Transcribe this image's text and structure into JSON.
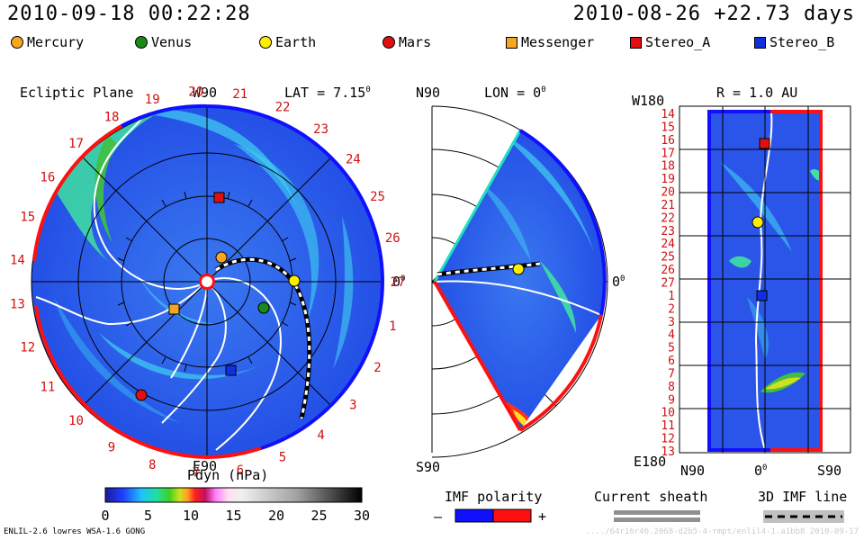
{
  "header": {
    "timestamp": "2010-09-18 00:22:28",
    "reference": "2010-08-26 +22.73 days"
  },
  "legend_bodies": [
    {
      "name": "Mercury",
      "shape": "circle",
      "color": "#f5a623"
    },
    {
      "name": "Venus",
      "shape": "circle",
      "color": "#1a8a1a"
    },
    {
      "name": "Earth",
      "shape": "circle",
      "color": "#ffee00"
    },
    {
      "name": "Mars",
      "shape": "circle",
      "color": "#e01010"
    },
    {
      "name": "Messenger",
      "shape": "square",
      "color": "#f5a623"
    },
    {
      "name": "Stereo_A",
      "shape": "square",
      "color": "#e01010"
    },
    {
      "name": "Stereo_B",
      "shape": "square",
      "color": "#1030e0"
    }
  ],
  "panels": {
    "ecliptic": {
      "title": "Ecliptic Plane",
      "top_label": "W90",
      "bottom_label": "E90",
      "lat_label": "LAT = 7.15",
      "right_label": "0"
    },
    "meridional": {
      "top_label": "N90",
      "bottom_label": "S90",
      "lon_label": "LON = 0",
      "right_label": "0"
    },
    "radial": {
      "title": "R = 1.0 AU",
      "top_left": "W180",
      "bottom_left": "E180",
      "x_left": "N90",
      "x_mid": "0",
      "x_right": "S90"
    }
  },
  "chart_data": {
    "type": "heatmap",
    "quantity": "Pdyn (nPa)",
    "colorbar_ticks": [
      0,
      5,
      10,
      15,
      20,
      25,
      30
    ],
    "colorbar_range": [
      0,
      30
    ],
    "carrington_days_ecliptic": [
      "1",
      "2",
      "3",
      "4",
      "5",
      "6",
      "7",
      "8",
      "9",
      "10",
      "11",
      "12",
      "13",
      "14",
      "15",
      "16",
      "17",
      "18",
      "19",
      "20",
      "21",
      "22",
      "23",
      "24",
      "25",
      "26",
      "27"
    ],
    "day_axis_radial": [
      "14",
      "15",
      "16",
      "17",
      "18",
      "19",
      "20",
      "21",
      "22",
      "23",
      "24",
      "25",
      "26",
      "27",
      "1",
      "2",
      "3",
      "4",
      "5",
      "6",
      "7",
      "8",
      "9",
      "10",
      "11",
      "12",
      "13"
    ]
  },
  "footer": {
    "imf_polarity_label": "IMF polarity",
    "imf_minus": "–",
    "imf_plus": "+",
    "current_sheath_label": "Current sheath",
    "imf_line_label": "3D IMF line",
    "model_info": "ENLIL-2.6 lowres WSA-1.6 GONG",
    "run_id": "..../64r16r46.2068-d2b5-4-rmpt/enlil4-1.a1bb8   2010-09-17"
  },
  "colors": {
    "background_field": "#2b55e8",
    "positive_polarity": "#ff1010",
    "negative_polarity": "#1010ff"
  }
}
